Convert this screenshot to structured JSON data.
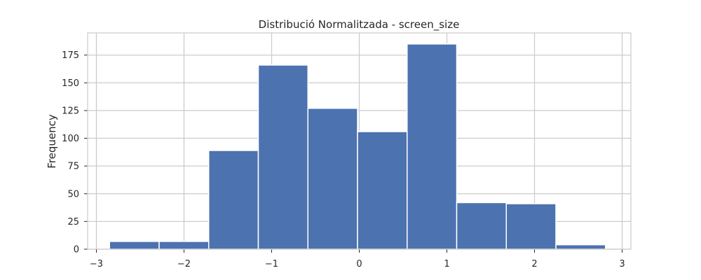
{
  "chart_data": {
    "type": "bar",
    "title": "Distribució Normalitzada - screen_size",
    "xlabel": "",
    "ylabel": "Frequency",
    "bin_edges": [
      -2.85,
      -2.284,
      -1.718,
      -1.152,
      -0.586,
      -0.02,
      0.546,
      1.112,
      1.678,
      2.244,
      2.81
    ],
    "values": [
      7,
      7,
      89,
      166,
      127,
      106,
      185,
      42,
      41,
      4
    ],
    "xlim": [
      -3.1,
      3.1
    ],
    "ylim": [
      0,
      195
    ],
    "x_ticks": [
      -3,
      -2,
      -1,
      0,
      1,
      2,
      3
    ],
    "x_tick_labels": [
      "−3",
      "−2",
      "−1",
      "0",
      "1",
      "2",
      "3"
    ],
    "y_ticks": [
      0,
      25,
      50,
      75,
      100,
      125,
      150,
      175
    ],
    "y_tick_labels": [
      "0",
      "25",
      "50",
      "75",
      "100",
      "125",
      "150",
      "175"
    ],
    "grid": true,
    "bar_color": "#4c72b0",
    "edge_color": "#ffffff"
  }
}
